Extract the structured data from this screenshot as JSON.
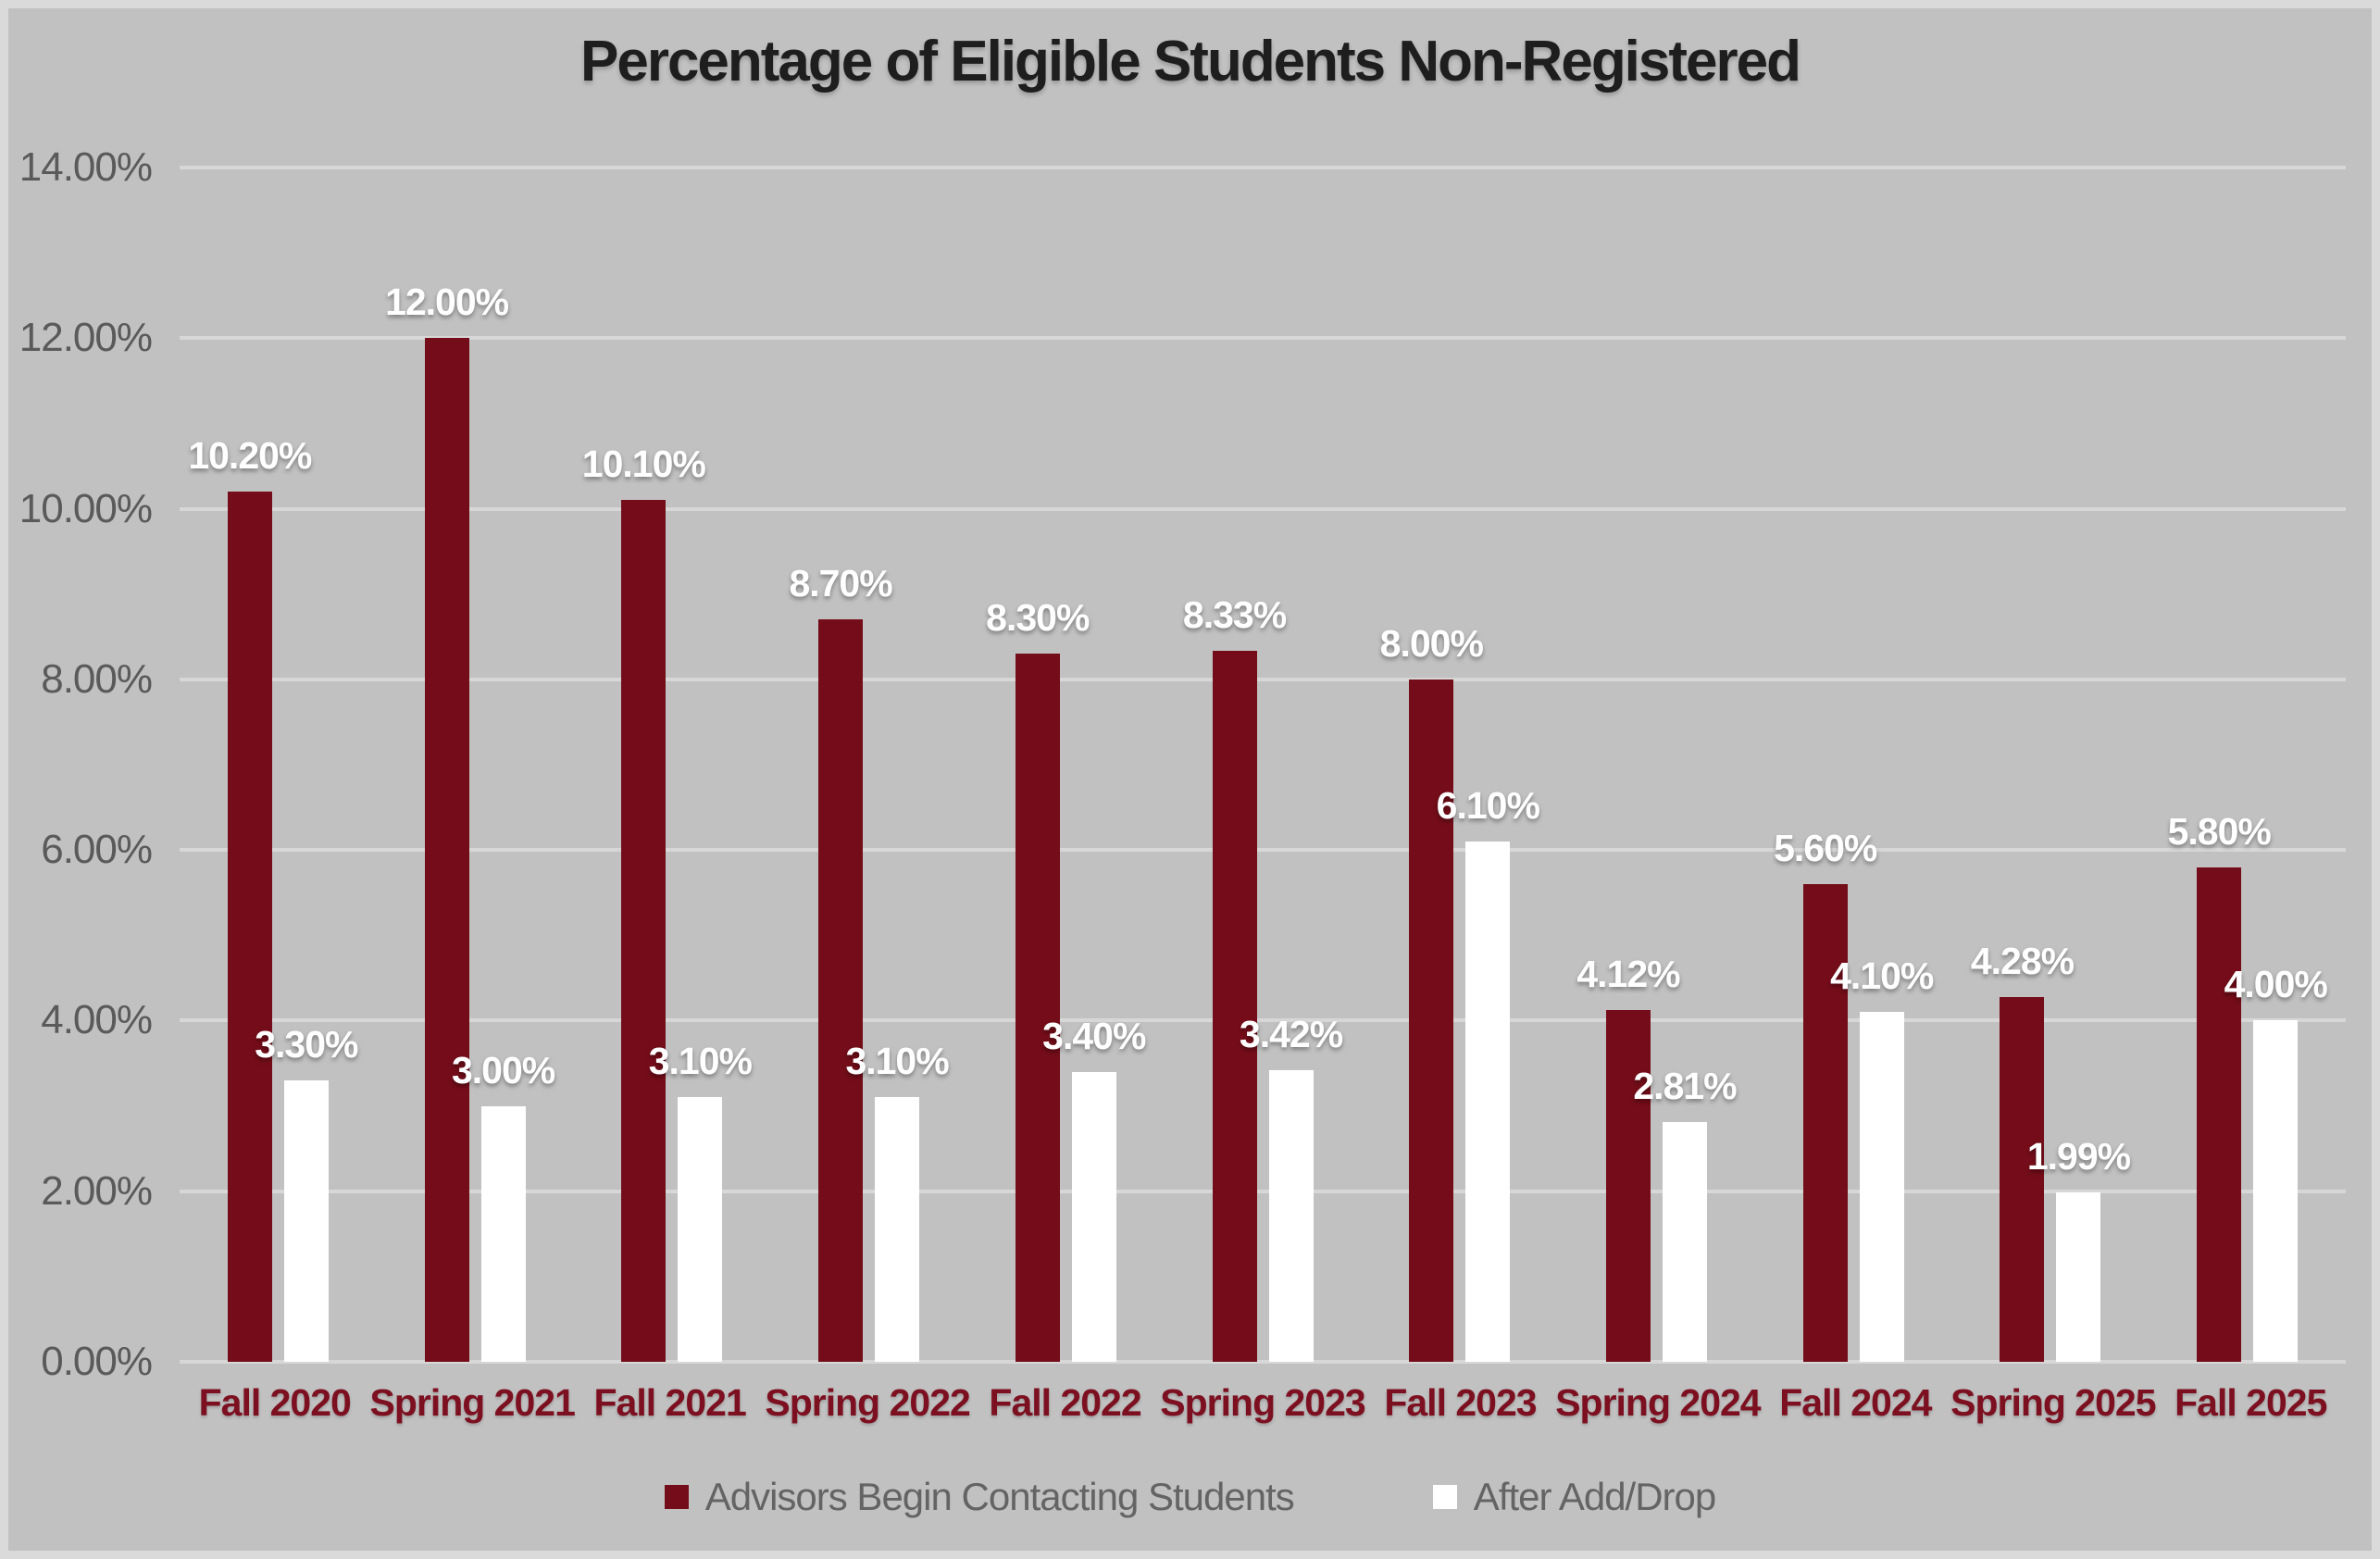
{
  "window": {
    "background_color": "#C1C1C1",
    "border_color": "#DADADA"
  },
  "styles": {
    "title_color": "#1E1E1E",
    "axis_text_color": "#5A5A5A",
    "category_text_color": "#7D1020",
    "bar_label_color": "#FFFFFF",
    "gridline_color": "#D7D7D7",
    "legend_text_color": "#646464"
  },
  "chart_data": {
    "type": "bar",
    "title": "Percentage of Eligible Students Non-Registered",
    "xlabel": "",
    "ylabel": "",
    "grid": true,
    "legend_position": "bottom",
    "ylim": [
      0,
      14
    ],
    "yticks": [
      {
        "value": 0,
        "label": "0.00%"
      },
      {
        "value": 2,
        "label": "2.00%"
      },
      {
        "value": 4,
        "label": "4.00%"
      },
      {
        "value": 6,
        "label": "6.00%"
      },
      {
        "value": 8,
        "label": "8.00%"
      },
      {
        "value": 10,
        "label": "10.00%"
      },
      {
        "value": 12,
        "label": "12.00%"
      },
      {
        "value": 14,
        "label": "14.00%"
      }
    ],
    "categories": [
      "Fall 2020",
      "Spring 2021",
      "Fall 2021",
      "Spring 2022",
      "Fall 2022",
      "Spring 2023",
      "Fall 2023",
      "Spring 2024",
      "Fall 2024",
      "Spring 2025",
      "Fall 2025"
    ],
    "series": [
      {
        "name": "Advisors Begin Contacting Students",
        "color": "#740D19",
        "values": [
          10.2,
          12.0,
          10.1,
          8.7,
          8.3,
          8.33,
          8.0,
          4.12,
          5.6,
          4.28,
          5.8
        ],
        "labels": [
          "10.20%",
          "12.00%",
          "10.10%",
          "8.70%",
          "8.30%",
          "8.33%",
          "8.00%",
          "4.12%",
          "5.60%",
          "4.28%",
          "5.80%"
        ]
      },
      {
        "name": "After Add/Drop",
        "color": "#FFFFFF",
        "values": [
          3.3,
          3.0,
          3.1,
          3.1,
          3.4,
          3.42,
          6.1,
          2.81,
          4.1,
          1.99,
          4.0
        ],
        "labels": [
          "3.30%",
          "3.00%",
          "3.10%",
          "3.10%",
          "3.40%",
          "3.42%",
          "6.10%",
          "2.81%",
          "4.10%",
          "1.99%",
          "4.00%"
        ]
      }
    ]
  }
}
